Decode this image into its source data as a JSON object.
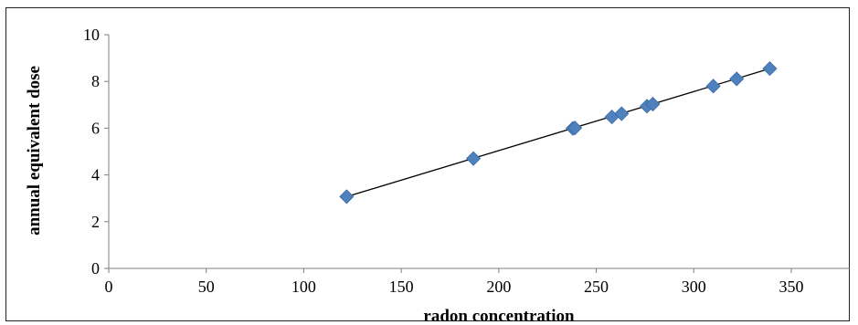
{
  "chart_data": {
    "type": "scatter",
    "xlabel": "radon concentration",
    "ylabel": "annual equivalent dose",
    "xlim": [
      0,
      380
    ],
    "ylim": [
      0,
      10
    ],
    "xticks": [
      "0",
      "50",
      "100",
      "150",
      "200",
      "250",
      "300",
      "350"
    ],
    "yticks": [
      "0",
      "2",
      "4",
      "6",
      "8",
      "10"
    ],
    "grid": false,
    "legend": "none",
    "marker": "diamond",
    "marker_color": "#4F81BD",
    "trendline": {
      "type": "linear",
      "x": [
        122,
        339
      ],
      "y": [
        3.07,
        8.55
      ],
      "color": "#000000"
    },
    "points": [
      {
        "x": 122,
        "y": 3.07
      },
      {
        "x": 187,
        "y": 4.7
      },
      {
        "x": 238,
        "y": 5.99
      },
      {
        "x": 239,
        "y": 6.01
      },
      {
        "x": 258,
        "y": 6.48
      },
      {
        "x": 263,
        "y": 6.62
      },
      {
        "x": 276,
        "y": 6.94
      },
      {
        "x": 279,
        "y": 7.03
      },
      {
        "x": 310,
        "y": 7.8
      },
      {
        "x": 322,
        "y": 8.11
      },
      {
        "x": 339,
        "y": 8.55
      }
    ]
  }
}
